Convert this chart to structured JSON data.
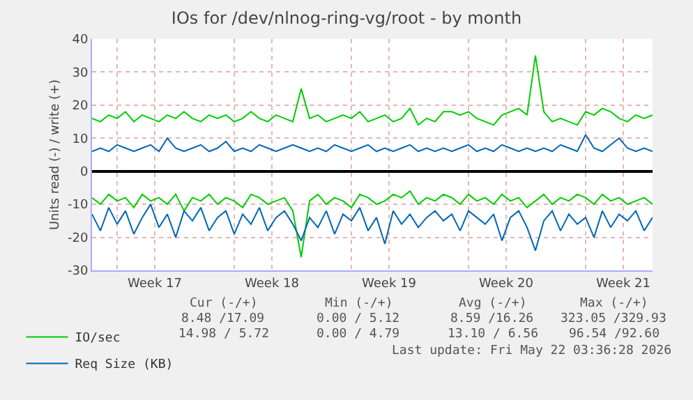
{
  "chart_data": {
    "type": "line",
    "title": "IOs for /dev/nlnog-ring-vg/root - by month",
    "ylabel": "Units read (-) / write (+)",
    "x": [
      "2026-04-18T12:00",
      "2026-04-19T00:00",
      "2026-04-19T12:00",
      "2026-04-20T00:00",
      "2026-04-20T12:00",
      "2026-04-21T00:00",
      "2026-04-21T12:00",
      "2026-04-22T00:00",
      "2026-04-22T12:00",
      "2026-04-23T00:00",
      "2026-04-23T12:00",
      "2026-04-24T00:00",
      "2026-04-24T12:00",
      "2026-04-25T00:00",
      "2026-04-25T12:00",
      "2026-04-26T00:00",
      "2026-04-26T12:00",
      "2026-04-27T00:00",
      "2026-04-27T12:00",
      "2026-04-28T00:00",
      "2026-04-28T12:00",
      "2026-04-29T00:00",
      "2026-04-29T12:00",
      "2026-04-30T00:00",
      "2026-04-30T12:00",
      "2026-05-01T00:00",
      "2026-05-01T12:00",
      "2026-05-02T00:00",
      "2026-05-02T12:00",
      "2026-05-03T00:00",
      "2026-05-03T12:00",
      "2026-05-04T00:00",
      "2026-05-04T12:00",
      "2026-05-05T00:00",
      "2026-05-05T12:00",
      "2026-05-06T00:00",
      "2026-05-06T12:00",
      "2026-05-07T00:00",
      "2026-05-07T12:00",
      "2026-05-08T00:00",
      "2026-05-08T12:00",
      "2026-05-09T00:00",
      "2026-05-09T12:00",
      "2026-05-10T00:00",
      "2026-05-10T12:00",
      "2026-05-11T00:00",
      "2026-05-11T12:00",
      "2026-05-12T00:00",
      "2026-05-12T12:00",
      "2026-05-13T00:00",
      "2026-05-13T12:00",
      "2026-05-14T00:00",
      "2026-05-14T12:00",
      "2026-05-15T00:00",
      "2026-05-15T12:00",
      "2026-05-16T00:00",
      "2026-05-16T12:00",
      "2026-05-17T00:00",
      "2026-05-17T12:00",
      "2026-05-18T00:00",
      "2026-05-18T12:00",
      "2026-05-19T00:00",
      "2026-05-19T12:00",
      "2026-05-20T00:00",
      "2026-05-20T12:00",
      "2026-05-21T00:00",
      "2026-05-21T12:00",
      "2026-05-22T00:00"
    ],
    "series": [
      {
        "name": "IO/sec",
        "color": "#00cc00",
        "values": [
          16,
          15,
          17,
          16,
          18,
          15,
          17,
          16,
          15,
          17,
          16,
          18,
          16,
          15,
          17,
          16,
          17,
          15,
          16,
          18,
          16,
          15,
          17,
          16,
          15,
          25,
          16,
          17,
          15,
          16,
          17,
          16,
          18,
          15,
          16,
          17,
          15,
          16,
          19,
          14,
          16,
          15,
          18,
          18,
          17,
          18,
          16,
          15,
          14,
          17,
          18,
          19,
          17,
          35,
          18,
          15,
          16,
          15,
          14,
          18,
          17,
          19,
          18,
          16,
          15,
          17,
          16,
          17
        ]
      },
      {
        "name": "Req Size (KB)",
        "color": "#0066b3",
        "values": [
          6,
          7,
          6,
          8,
          7,
          6,
          7,
          8,
          6,
          10,
          7,
          6,
          7,
          8,
          6,
          7,
          9,
          6,
          7,
          6,
          8,
          7,
          6,
          7,
          8,
          7,
          6,
          7,
          6,
          8,
          7,
          6,
          7,
          8,
          6,
          7,
          6,
          7,
          8,
          6,
          7,
          6,
          7,
          6,
          7,
          8,
          6,
          7,
          6,
          8,
          7,
          6,
          7,
          6,
          7,
          6,
          8,
          7,
          6,
          11,
          7,
          6,
          8,
          10,
          7,
          6,
          7,
          6
        ]
      },
      {
        "color": "#00cc00",
        "values": [
          -8,
          -10,
          -7,
          -9,
          -8,
          -11,
          -7,
          -9,
          -8,
          -10,
          -7,
          -12,
          -8,
          -9,
          -7,
          -10,
          -8,
          -9,
          -11,
          -7,
          -8,
          -10,
          -9,
          -8,
          -12,
          -26,
          -9,
          -7,
          -10,
          -8,
          -9,
          -11,
          -7,
          -8,
          -10,
          -9,
          -7,
          -8,
          -6,
          -10,
          -8,
          -9,
          -7,
          -8,
          -10,
          -7,
          -9,
          -8,
          -10,
          -7,
          -9,
          -8,
          -11,
          -9,
          -7,
          -10,
          -8,
          -9,
          -7,
          -8,
          -10,
          -7,
          -9,
          -8,
          -10,
          -9,
          -8,
          -10
        ]
      },
      {
        "color": "#0066b3",
        "values": [
          -13,
          -18,
          -11,
          -16,
          -12,
          -19,
          -14,
          -10,
          -17,
          -13,
          -20,
          -12,
          -15,
          -11,
          -18,
          -14,
          -12,
          -19,
          -13,
          -16,
          -11,
          -18,
          -14,
          -12,
          -16,
          -21,
          -14,
          -17,
          -12,
          -19,
          -13,
          -15,
          -11,
          -18,
          -14,
          -22,
          -12,
          -16,
          -13,
          -17,
          -14,
          -12,
          -15,
          -13,
          -18,
          -12,
          -14,
          -16,
          -13,
          -21,
          -14,
          -12,
          -17,
          -24,
          -15,
          -12,
          -18,
          -13,
          -16,
          -14,
          -20,
          -12,
          -17,
          -13,
          -15,
          -12,
          -18,
          -14
        ]
      }
    ],
    "xlim": [
      "2026-04-18T12:00",
      "2026-05-22T00:00"
    ],
    "xticks": [
      {
        "value": "2026-04-20",
        "label": null
      },
      {
        "value": "2026-04-22T06:00",
        "label": "Week 17"
      },
      {
        "value": "2026-04-27",
        "label": null
      },
      {
        "value": "2026-04-29T06:00",
        "label": "Week 18"
      },
      {
        "value": "2026-05-04",
        "label": null
      },
      {
        "value": "2026-05-06T06:00",
        "label": "Week 19"
      },
      {
        "value": "2026-05-11",
        "label": null
      },
      {
        "value": "2026-05-13T06:00",
        "label": "Week 20"
      },
      {
        "value": "2026-05-18",
        "label": null
      },
      {
        "value": "2026-05-20T06:00",
        "label": "Week 21"
      }
    ],
    "ylim": [
      -30,
      40
    ],
    "yticks": [
      -30,
      -20,
      -10,
      0,
      10,
      20,
      30,
      40
    ],
    "grid": true,
    "legend": "bottom",
    "marker": "none",
    "line_style": "solid",
    "annotations": [
      "Cur (-/+)",
      "Min (-/+)",
      "Avg (-/+)",
      "Max (-/+)",
      "8.48 /17.09",
      "0.00 / 5.12",
      "8.59 /16.26",
      "323.05 /329.93",
      "14.98 / 5.72",
      "0.00 / 4.79",
      "13.10 / 6.56",
      "96.54 /92.60",
      "Last update: Fri May 22 03:36:28 2026"
    ]
  }
}
